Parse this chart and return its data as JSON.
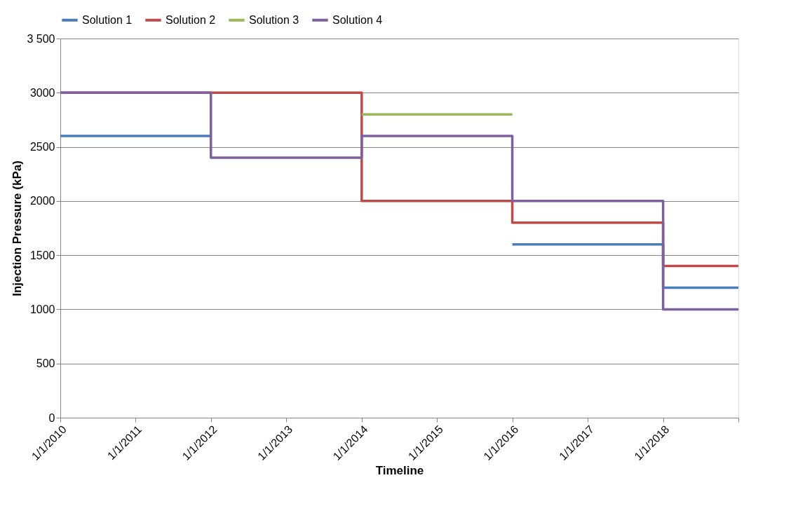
{
  "chart_data": {
    "type": "step",
    "xlabel": "Timeline",
    "ylabel": "Injection Pressure (kPa)",
    "x": [
      "2010-01-01",
      "2012-01-01",
      "2014-01-01",
      "2016-01-01",
      "2018-01-01",
      "2019-01-01"
    ],
    "series": [
      {
        "name": "Solution 1",
        "color": "#4a7ebb",
        "values": [
          2600,
          2600,
          null,
          1600,
          1200,
          1200
        ]
      },
      {
        "name": "Solution 2",
        "color": "#be4b48",
        "values": [
          3000,
          3000,
          2000,
          1800,
          1400,
          1400
        ]
      },
      {
        "name": "Solution 3",
        "color": "#98b954",
        "x": [
          "2014-01-01",
          "2016-01-01"
        ],
        "values": [
          2800,
          2800
        ]
      },
      {
        "name": "Solution 4",
        "color": "#7d60a0",
        "values": [
          3000,
          2400,
          2600,
          2000,
          1000,
          1000
        ]
      }
    ],
    "xlim": [
      "2010-01-01",
      "2019-01-01"
    ],
    "xticks": [
      {
        "value": "2010-01-01",
        "label": "1/1/2010"
      },
      {
        "value": "2011-01-01",
        "label": "1/1/2011"
      },
      {
        "value": "2012-01-01",
        "label": "1/1/2012"
      },
      {
        "value": "2013-01-01",
        "label": "1/1/2013"
      },
      {
        "value": "2014-01-01",
        "label": "1/1/2014"
      },
      {
        "value": "2015-01-01",
        "label": "1/1/2015"
      },
      {
        "value": "2016-01-01",
        "label": "1/1/2016"
      },
      {
        "value": "2017-01-01",
        "label": "1/1/2017"
      },
      {
        "value": "2018-01-01",
        "label": "1/1/2018"
      },
      {
        "value": "2019-01-01",
        "label": null
      }
    ],
    "ylim": [
      0,
      3500
    ],
    "yticks": [
      0,
      500,
      1000,
      1500,
      2000,
      2500,
      3000,
      {
        "value": 3500,
        "label": "3 500"
      }
    ],
    "grid": "y",
    "legend": "top",
    "marker": "none",
    "line_style": "solid"
  }
}
